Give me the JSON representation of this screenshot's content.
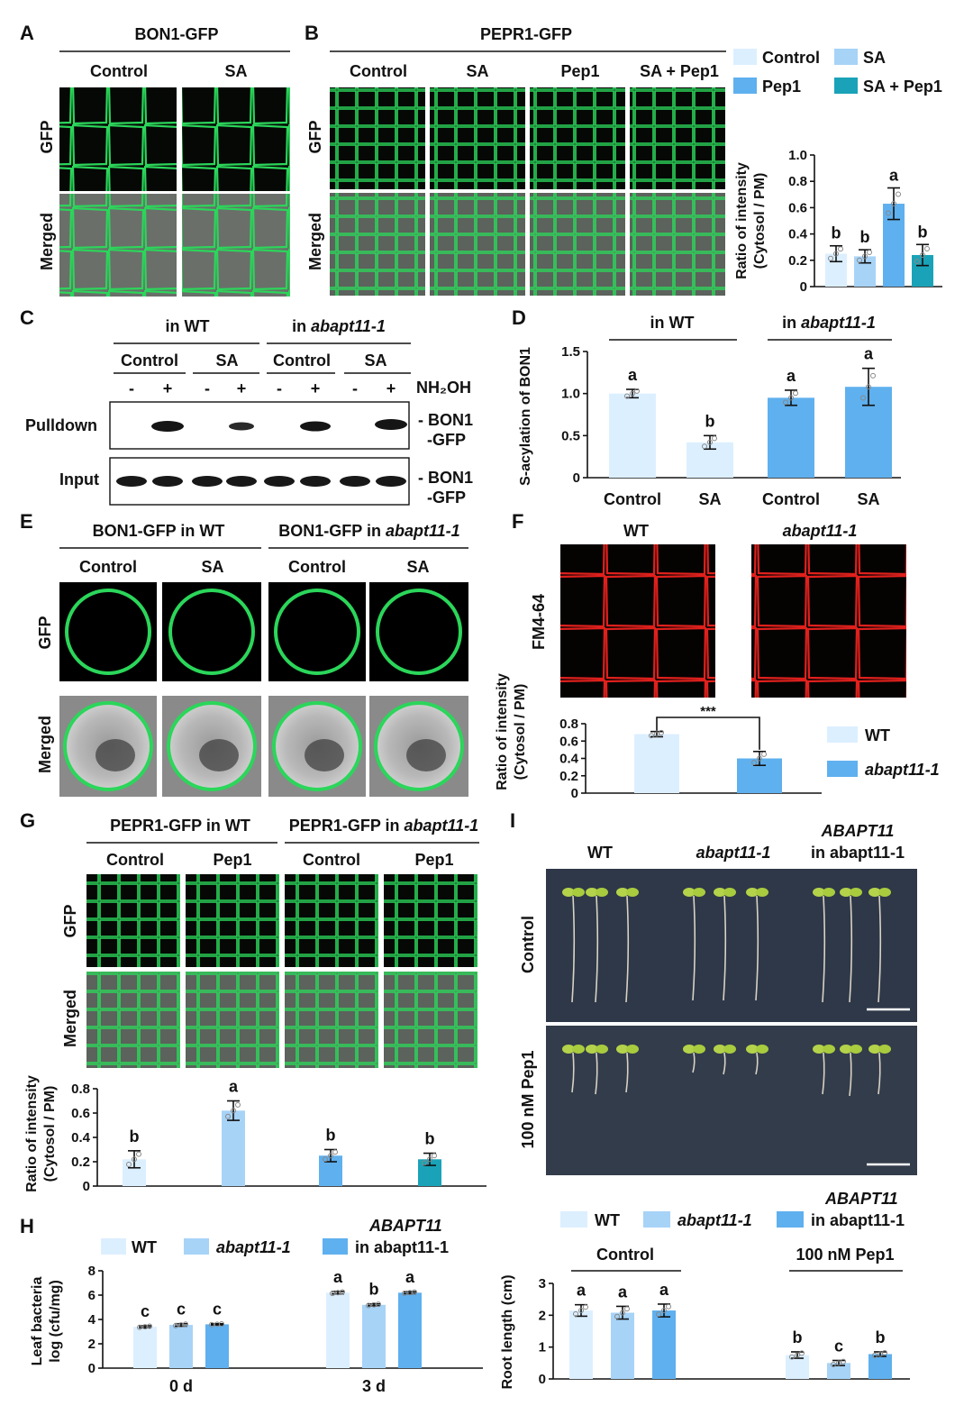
{
  "colors": {
    "c1": "#dcefff",
    "c2": "#a7d3f7",
    "c3": "#5fb0ee",
    "c4": "#1aa3b8",
    "gfp": "#2bd65a",
    "fm": "#e0201c"
  },
  "panels": {
    "A": {
      "letter": "A",
      "title": "BON1-GFP",
      "cols": [
        "Control",
        "SA"
      ],
      "rows": [
        "GFP",
        "Merged"
      ]
    },
    "B": {
      "letter": "B",
      "title": "PEPR1-GFP",
      "cols": [
        "Control",
        "SA",
        "Pep1",
        "SA + Pep1"
      ],
      "rows": [
        "GFP",
        "Merged"
      ]
    },
    "C": {
      "letter": "C",
      "groups": [
        {
          "pre": "in ",
          "name": "WT"
        },
        {
          "pre": "in ",
          "name": "abapt11-1"
        }
      ],
      "treatments": [
        "Control",
        "SA",
        "Control",
        "SA"
      ],
      "lanes": [
        "-",
        "+",
        "-",
        "+",
        "-",
        "+",
        "-",
        "+"
      ],
      "reagent": "NH₂OH",
      "rows": [
        "Pulldown",
        "Input"
      ],
      "band_label": [
        "- BON1",
        "-GFP"
      ]
    },
    "D": {
      "letter": "D",
      "groups": [
        {
          "pre": "in ",
          "name": "WT"
        },
        {
          "pre": "in ",
          "name": "abapt11-1"
        }
      ]
    },
    "E": {
      "letter": "E",
      "groups": [
        {
          "pre": "BON1-GFP in ",
          "name": "WT"
        },
        {
          "pre": "BON1-GFP in ",
          "name": "abapt11-1"
        }
      ],
      "cols": [
        "Control",
        "SA",
        "Control",
        "SA"
      ],
      "rows": [
        "GFP",
        "Merged"
      ]
    },
    "F": {
      "letter": "F",
      "cols": [
        "WT",
        "abapt11-1"
      ],
      "row": "FM4-64"
    },
    "G": {
      "letter": "G",
      "groups": [
        {
          "pre": "PEPR1-GFP in ",
          "name": "WT"
        },
        {
          "pre": "PEPR1-GFP in ",
          "name": "abapt11-1"
        }
      ],
      "cols": [
        "Control",
        "Pep1",
        "Control",
        "Pep1"
      ],
      "rows": [
        "GFP",
        "Merged"
      ]
    },
    "H": {
      "letter": "H"
    },
    "I": {
      "letter": "I",
      "cols": [
        "WT",
        "abapt11-1",
        "ABAPT11",
        "in abapt11-1"
      ],
      "rows": [
        "Control",
        "100 nM Pep1"
      ]
    }
  },
  "chart_data": [
    {
      "id": "B",
      "type": "bar",
      "legend": [
        "Control",
        "SA",
        "Pep1",
        "SA + Pep1"
      ],
      "ylabel": [
        "Ratio of intensity",
        "(Cytosol / PM)"
      ],
      "ylim": [
        0,
        1.0
      ],
      "yticks": [
        "0",
        "0.2",
        "0.4",
        "0.6",
        "0.8",
        "1.0"
      ],
      "values": [
        0.25,
        0.23,
        0.63,
        0.24
      ],
      "errors": [
        0.06,
        0.05,
        0.12,
        0.08
      ],
      "letters": [
        "b",
        "b",
        "a",
        "b"
      ]
    },
    {
      "id": "D",
      "type": "bar",
      "categories": [
        "Control",
        "SA",
        "Control",
        "SA"
      ],
      "ylabel": "S-acylation of BON1",
      "ylim": [
        0,
        1.5
      ],
      "yticks": [
        "0",
        "0.5",
        "1.0",
        "1.5"
      ],
      "values": [
        1.0,
        0.42,
        0.95,
        1.08
      ],
      "errors": [
        0.05,
        0.08,
        0.09,
        0.22
      ],
      "letters": [
        "a",
        "b",
        "a",
        "a"
      ]
    },
    {
      "id": "F",
      "type": "bar",
      "legend": [
        "WT",
        "abapt11-1"
      ],
      "ylabel": [
        "Ratio of intensity",
        "(Cytosol / PM)"
      ],
      "ylim": [
        0,
        0.8
      ],
      "yticks": [
        "0",
        "0.2",
        "0.4",
        "0.6",
        "0.8"
      ],
      "values": [
        0.68,
        0.4
      ],
      "errors": [
        0.03,
        0.08
      ],
      "significance": "***"
    },
    {
      "id": "G",
      "type": "bar",
      "ylabel": [
        "Ratio of intensity",
        "(Cytosol / PM)"
      ],
      "ylim": [
        0,
        0.8
      ],
      "yticks": [
        "0",
        "0.2",
        "0.4",
        "0.6",
        "0.8"
      ],
      "values": [
        0.22,
        0.62,
        0.25,
        0.22
      ],
      "errors": [
        0.07,
        0.08,
        0.05,
        0.05
      ],
      "letters": [
        "b",
        "a",
        "b",
        "b"
      ]
    },
    {
      "id": "H",
      "type": "bar",
      "legend": [
        "WT",
        "abapt11-1",
        "ABAPT11",
        "in abapt11-1"
      ],
      "categories": [
        "0 d",
        "3 d"
      ],
      "ylabel": [
        "Leaf bacteria",
        "log (cfu/mg)"
      ],
      "ylim": [
        0,
        8
      ],
      "yticks": [
        "0",
        "2",
        "4",
        "6",
        "8"
      ],
      "series": [
        {
          "values": [
            3.4,
            6.2
          ],
          "errors": [
            0.08,
            0.1
          ]
        },
        {
          "values": [
            3.55,
            5.2
          ],
          "errors": [
            0.1,
            0.08
          ]
        },
        {
          "values": [
            3.6,
            6.2
          ],
          "errors": [
            0.05,
            0.08
          ]
        }
      ],
      "letters": [
        [
          "c",
          "c",
          "c"
        ],
        [
          "a",
          "b",
          "a"
        ]
      ]
    },
    {
      "id": "I",
      "type": "bar",
      "legend": [
        "WT",
        "abapt11-1",
        "ABAPT11",
        "in abapt11-1"
      ],
      "categories": [
        "Control",
        "100 nM Pep1"
      ],
      "ylabel": "Root length (cm)",
      "ylim": [
        0,
        3
      ],
      "yticks": [
        "0",
        "1",
        "2",
        "3"
      ],
      "series": [
        {
          "values": [
            2.15,
            0.75
          ],
          "errors": [
            0.18,
            0.1
          ]
        },
        {
          "values": [
            2.08,
            0.5
          ],
          "errors": [
            0.2,
            0.08
          ]
        },
        {
          "values": [
            2.15,
            0.78
          ],
          "errors": [
            0.2,
            0.07
          ]
        }
      ],
      "letters": [
        [
          "a",
          "a",
          "a"
        ],
        [
          "b",
          "c",
          "b"
        ]
      ]
    }
  ]
}
